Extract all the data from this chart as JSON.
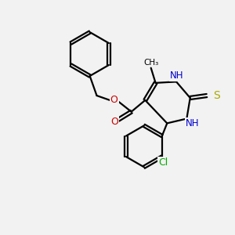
{
  "background_color": "#f2f2f2",
  "bond_color": "#000000",
  "N_color": "#0000cc",
  "O_color": "#cc0000",
  "S_color": "#aaaa00",
  "Cl_color": "#00aa00",
  "line_width": 1.6,
  "figsize": [
    3.0,
    3.0
  ],
  "dpi": 100,
  "xlim": [
    0,
    10
  ],
  "ylim": [
    0,
    10
  ]
}
